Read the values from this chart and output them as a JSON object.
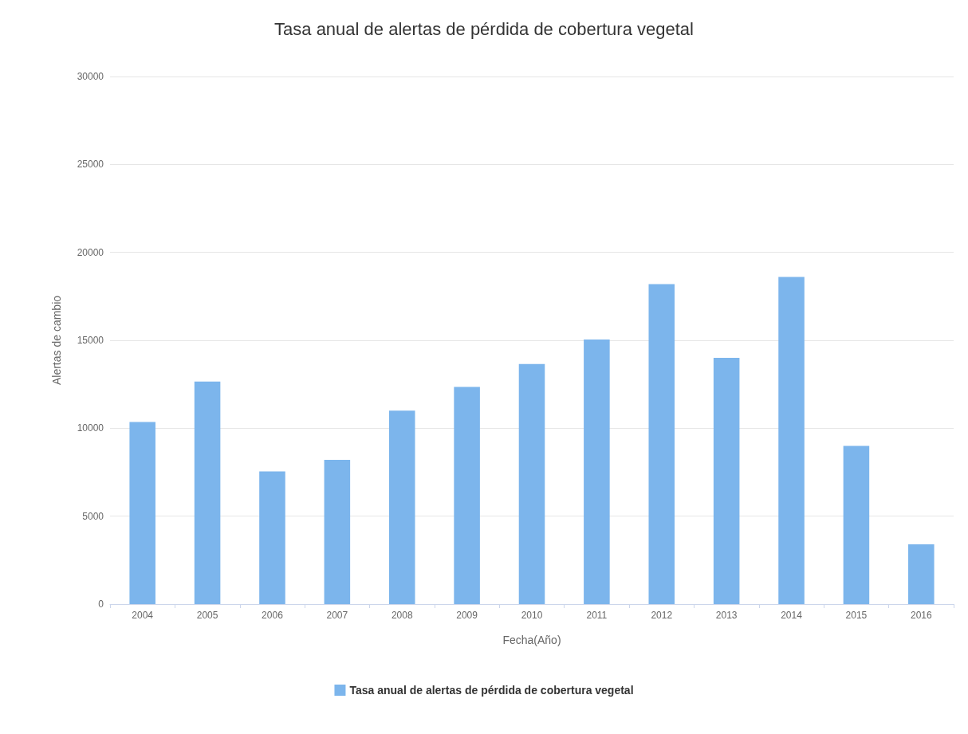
{
  "chart_data": {
    "type": "bar",
    "title": "Tasa anual de alertas de pérdida de cobertura vegetal",
    "xlabel": "Fecha(Año)",
    "ylabel": "Alertas de cambio",
    "categories": [
      "2004",
      "2005",
      "2006",
      "2007",
      "2008",
      "2009",
      "2010",
      "2011",
      "2012",
      "2013",
      "2014",
      "2015",
      "2016"
    ],
    "series": [
      {
        "name": "Tasa anual de alertas de pérdida de cobertura vegetal",
        "color": "#7cb5ec",
        "values": [
          10350,
          12650,
          7550,
          8200,
          11000,
          12350,
          13650,
          15050,
          18200,
          14000,
          18600,
          9000,
          3400
        ]
      }
    ],
    "ylim": [
      0,
      30000
    ],
    "yticks": [
      0,
      5000,
      10000,
      15000,
      20000,
      25000,
      30000
    ],
    "grid": "y",
    "legend": "bottom"
  }
}
